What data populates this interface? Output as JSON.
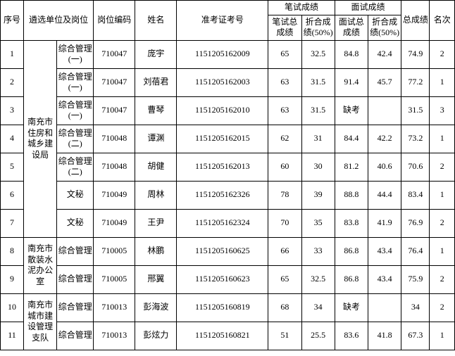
{
  "headers": {
    "seq": "序号",
    "unit": "遴选单位及岗位",
    "code": "岗位编码",
    "name": "姓名",
    "exam_no": "准考证考号",
    "written_group": "笔试成绩",
    "written_total": "笔试总成绩",
    "written_conv": "折合成绩(50%)",
    "interview_group": "面试成绩",
    "interview_total": "面试总成绩",
    "interview_conv": "折合成绩(50%)",
    "total": "总成绩",
    "rank": "名次"
  },
  "units": [
    {
      "name": "南充市住房和城乡建设局",
      "rowspan": 7
    },
    {
      "name": "南充市散装水泥办公室",
      "rowspan": 2
    },
    {
      "name": "南充市城市建设管理支队",
      "rowspan": 2
    }
  ],
  "rows": [
    {
      "seq": "1",
      "position": "综合管理(一)",
      "code": "710047",
      "name": "庞宇",
      "exam_no": "1151205162009",
      "written": "65",
      "written_conv": "32.5",
      "interview": "84.8",
      "interview_conv": "42.4",
      "total": "74.9",
      "rank": "2"
    },
    {
      "seq": "2",
      "position": "综合管理(一)",
      "code": "710047",
      "name": "刘蓓君",
      "exam_no": "1151205162003",
      "written": "63",
      "written_conv": "31.5",
      "interview": "91.4",
      "interview_conv": "45.7",
      "total": "77.2",
      "rank": "1"
    },
    {
      "seq": "3",
      "position": "综合管理(一)",
      "code": "710047",
      "name": "曹琴",
      "exam_no": "1151205162010",
      "written": "63",
      "written_conv": "31.5",
      "interview": "缺考",
      "interview_conv": "",
      "total": "31.5",
      "rank": "3"
    },
    {
      "seq": "4",
      "position": "综合管理(二)",
      "code": "710048",
      "name": "谭渊",
      "exam_no": "1151205162015",
      "written": "62",
      "written_conv": "31",
      "interview": "84.4",
      "interview_conv": "42.2",
      "total": "73.2",
      "rank": "1"
    },
    {
      "seq": "5",
      "position": "综合管理(二)",
      "code": "710048",
      "name": "胡健",
      "exam_no": "1151205162013",
      "written": "60",
      "written_conv": "30",
      "interview": "81.2",
      "interview_conv": "40.6",
      "total": "70.6",
      "rank": "2"
    },
    {
      "seq": "6",
      "position": "文秘",
      "code": "710049",
      "name": "周林",
      "exam_no": "1151205162326",
      "written": "78",
      "written_conv": "39",
      "interview": "88.8",
      "interview_conv": "44.4",
      "total": "83.4",
      "rank": "1"
    },
    {
      "seq": "7",
      "position": "文秘",
      "code": "710049",
      "name": "王尹",
      "exam_no": "1151205162324",
      "written": "70",
      "written_conv": "35",
      "interview": "83.8",
      "interview_conv": "41.9",
      "total": "76.9",
      "rank": "2"
    },
    {
      "seq": "8",
      "position": "综合管理",
      "code": "710005",
      "name": "林鹏",
      "exam_no": "1151205160625",
      "written": "66",
      "written_conv": "33",
      "interview": "86.8",
      "interview_conv": "43.4",
      "total": "76.4",
      "rank": "1"
    },
    {
      "seq": "9",
      "position": "综合管理",
      "code": "710005",
      "name": "邢翼",
      "exam_no": "1151205160623",
      "written": "65",
      "written_conv": "32.5",
      "interview": "86.8",
      "interview_conv": "43.4",
      "total": "75.9",
      "rank": "2"
    },
    {
      "seq": "10",
      "position": "综合管理",
      "code": "710013",
      "name": "彭海波",
      "exam_no": "1151205160819",
      "written": "68",
      "written_conv": "34",
      "interview": "缺考",
      "interview_conv": "",
      "total": "34",
      "rank": "2"
    },
    {
      "seq": "11",
      "position": "综合管理",
      "code": "710013",
      "name": "彭炫力",
      "exam_no": "1151205160821",
      "written": "51",
      "written_conv": "25.5",
      "interview": "83.6",
      "interview_conv": "41.8",
      "total": "67.3",
      "rank": "1"
    }
  ],
  "unit_map": [
    0,
    0,
    0,
    0,
    0,
    0,
    0,
    1,
    1,
    2,
    2
  ]
}
